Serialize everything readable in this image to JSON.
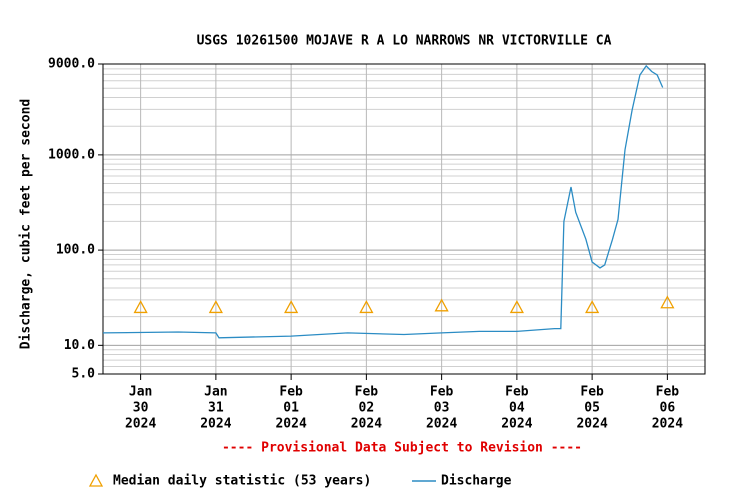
{
  "chart_data": {
    "type": "line",
    "title": "USGS 10261500 MOJAVE R A LO NARROWS NR VICTORVILLE CA",
    "y_label": "Discharge, cubic feet per second",
    "note": "---- Provisional Data Subject to Revision ----",
    "y_log": true,
    "grid": true,
    "minor_grid": true,
    "xlim": [
      "2024-01-29 12:00",
      "2024-02-06 12:00"
    ],
    "xticks": [
      {
        "value": "2024-01-30",
        "label": [
          "Jan",
          "30",
          "2024"
        ]
      },
      {
        "value": "2024-01-31",
        "label": [
          "Jan",
          "31",
          "2024"
        ]
      },
      {
        "value": "2024-02-01",
        "label": [
          "Feb",
          "01",
          "2024"
        ]
      },
      {
        "value": "2024-02-02",
        "label": [
          "Feb",
          "02",
          "2024"
        ]
      },
      {
        "value": "2024-02-03",
        "label": [
          "Feb",
          "03",
          "2024"
        ]
      },
      {
        "value": "2024-02-04",
        "label": [
          "Feb",
          "04",
          "2024"
        ]
      },
      {
        "value": "2024-02-05",
        "label": [
          "Feb",
          "05",
          "2024"
        ]
      },
      {
        "value": "2024-02-06",
        "label": [
          "Feb",
          "06",
          "2024"
        ]
      }
    ],
    "ylim": [
      5,
      9000
    ],
    "yticks": [
      {
        "value": 5,
        "label": "5.0"
      },
      {
        "value": 10,
        "label": "10.0"
      },
      {
        "value": 100,
        "label": "100.0"
      },
      {
        "value": 1000,
        "label": "1000.0"
      },
      {
        "value": 9000,
        "label": "9000.0"
      }
    ],
    "series": [
      {
        "name": "Median daily statistic (53 years)",
        "marker": "triangle",
        "color": "#f0a000",
        "x": [
          "2024-01-30",
          "2024-01-31",
          "2024-02-01",
          "2024-02-02",
          "2024-02-03",
          "2024-02-04",
          "2024-02-05",
          "2024-02-06"
        ],
        "values": [
          25,
          25,
          25,
          25,
          26,
          25,
          25,
          28
        ]
      },
      {
        "name": "Discharge",
        "marker": "line",
        "color": "#2b8cc4",
        "x": [
          "2024-01-29 12:00",
          "2024-01-30 12:00",
          "2024-01-31 00:00",
          "2024-01-31 01:00",
          "2024-02-01 00:00",
          "2024-02-01 18:00",
          "2024-02-02 12:00",
          "2024-02-03 00:00",
          "2024-02-03 12:00",
          "2024-02-04 00:00",
          "2024-02-04 12:00",
          "2024-02-04 14:00",
          "2024-02-04 15:00",
          "2024-02-04 17:15",
          "2024-02-04 18:45",
          "2024-02-04 22:00",
          "2024-02-05 00:00",
          "2024-02-05 02:30",
          "2024-02-05 04:00",
          "2024-02-05 06:30",
          "2024-02-05 08:15",
          "2024-02-05 10:30",
          "2024-02-05 12:45",
          "2024-02-05 15:15",
          "2024-02-05 17:15",
          "2024-02-05 19:00",
          "2024-02-05 20:45",
          "2024-02-05 22:30"
        ],
        "values": [
          13.5,
          13.8,
          13.5,
          12,
          12.5,
          13.5,
          13,
          13.5,
          14,
          14,
          15,
          15,
          200,
          460,
          250,
          130,
          75,
          65,
          70,
          130,
          210,
          1130,
          2950,
          6900,
          8600,
          7500,
          6900,
          5100
        ]
      }
    ]
  }
}
